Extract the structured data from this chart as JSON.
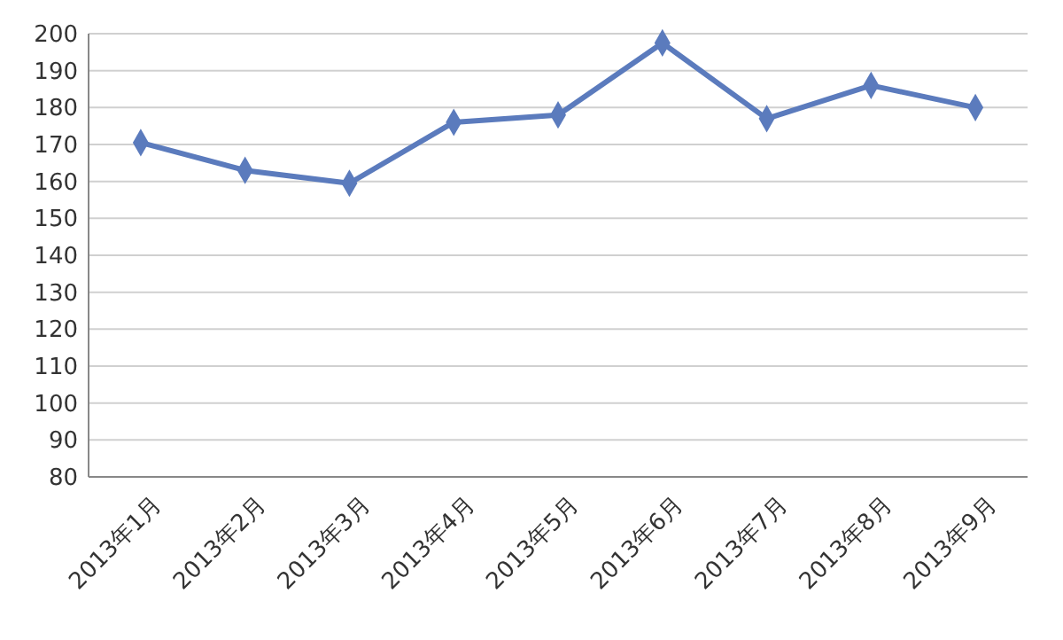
{
  "chart_data": {
    "type": "line",
    "categories": [
      "2013年1月",
      "2013年2月",
      "2013年3月",
      "2013年4月",
      "2013年5月",
      "2013年6月",
      "2013年7月",
      "2013年8月",
      "2013年9月"
    ],
    "series": [
      {
        "color": "#5b7bbd",
        "values": [
          170.5,
          163,
          159.5,
          176,
          178,
          197.5,
          177,
          186,
          180
        ]
      }
    ],
    "ylim": [
      80,
      200
    ],
    "yticks": [
      80,
      90,
      100,
      110,
      120,
      130,
      140,
      150,
      160,
      170,
      180,
      190,
      200
    ],
    "grid": "y",
    "marker": "diamond",
    "line_style": "solid"
  }
}
